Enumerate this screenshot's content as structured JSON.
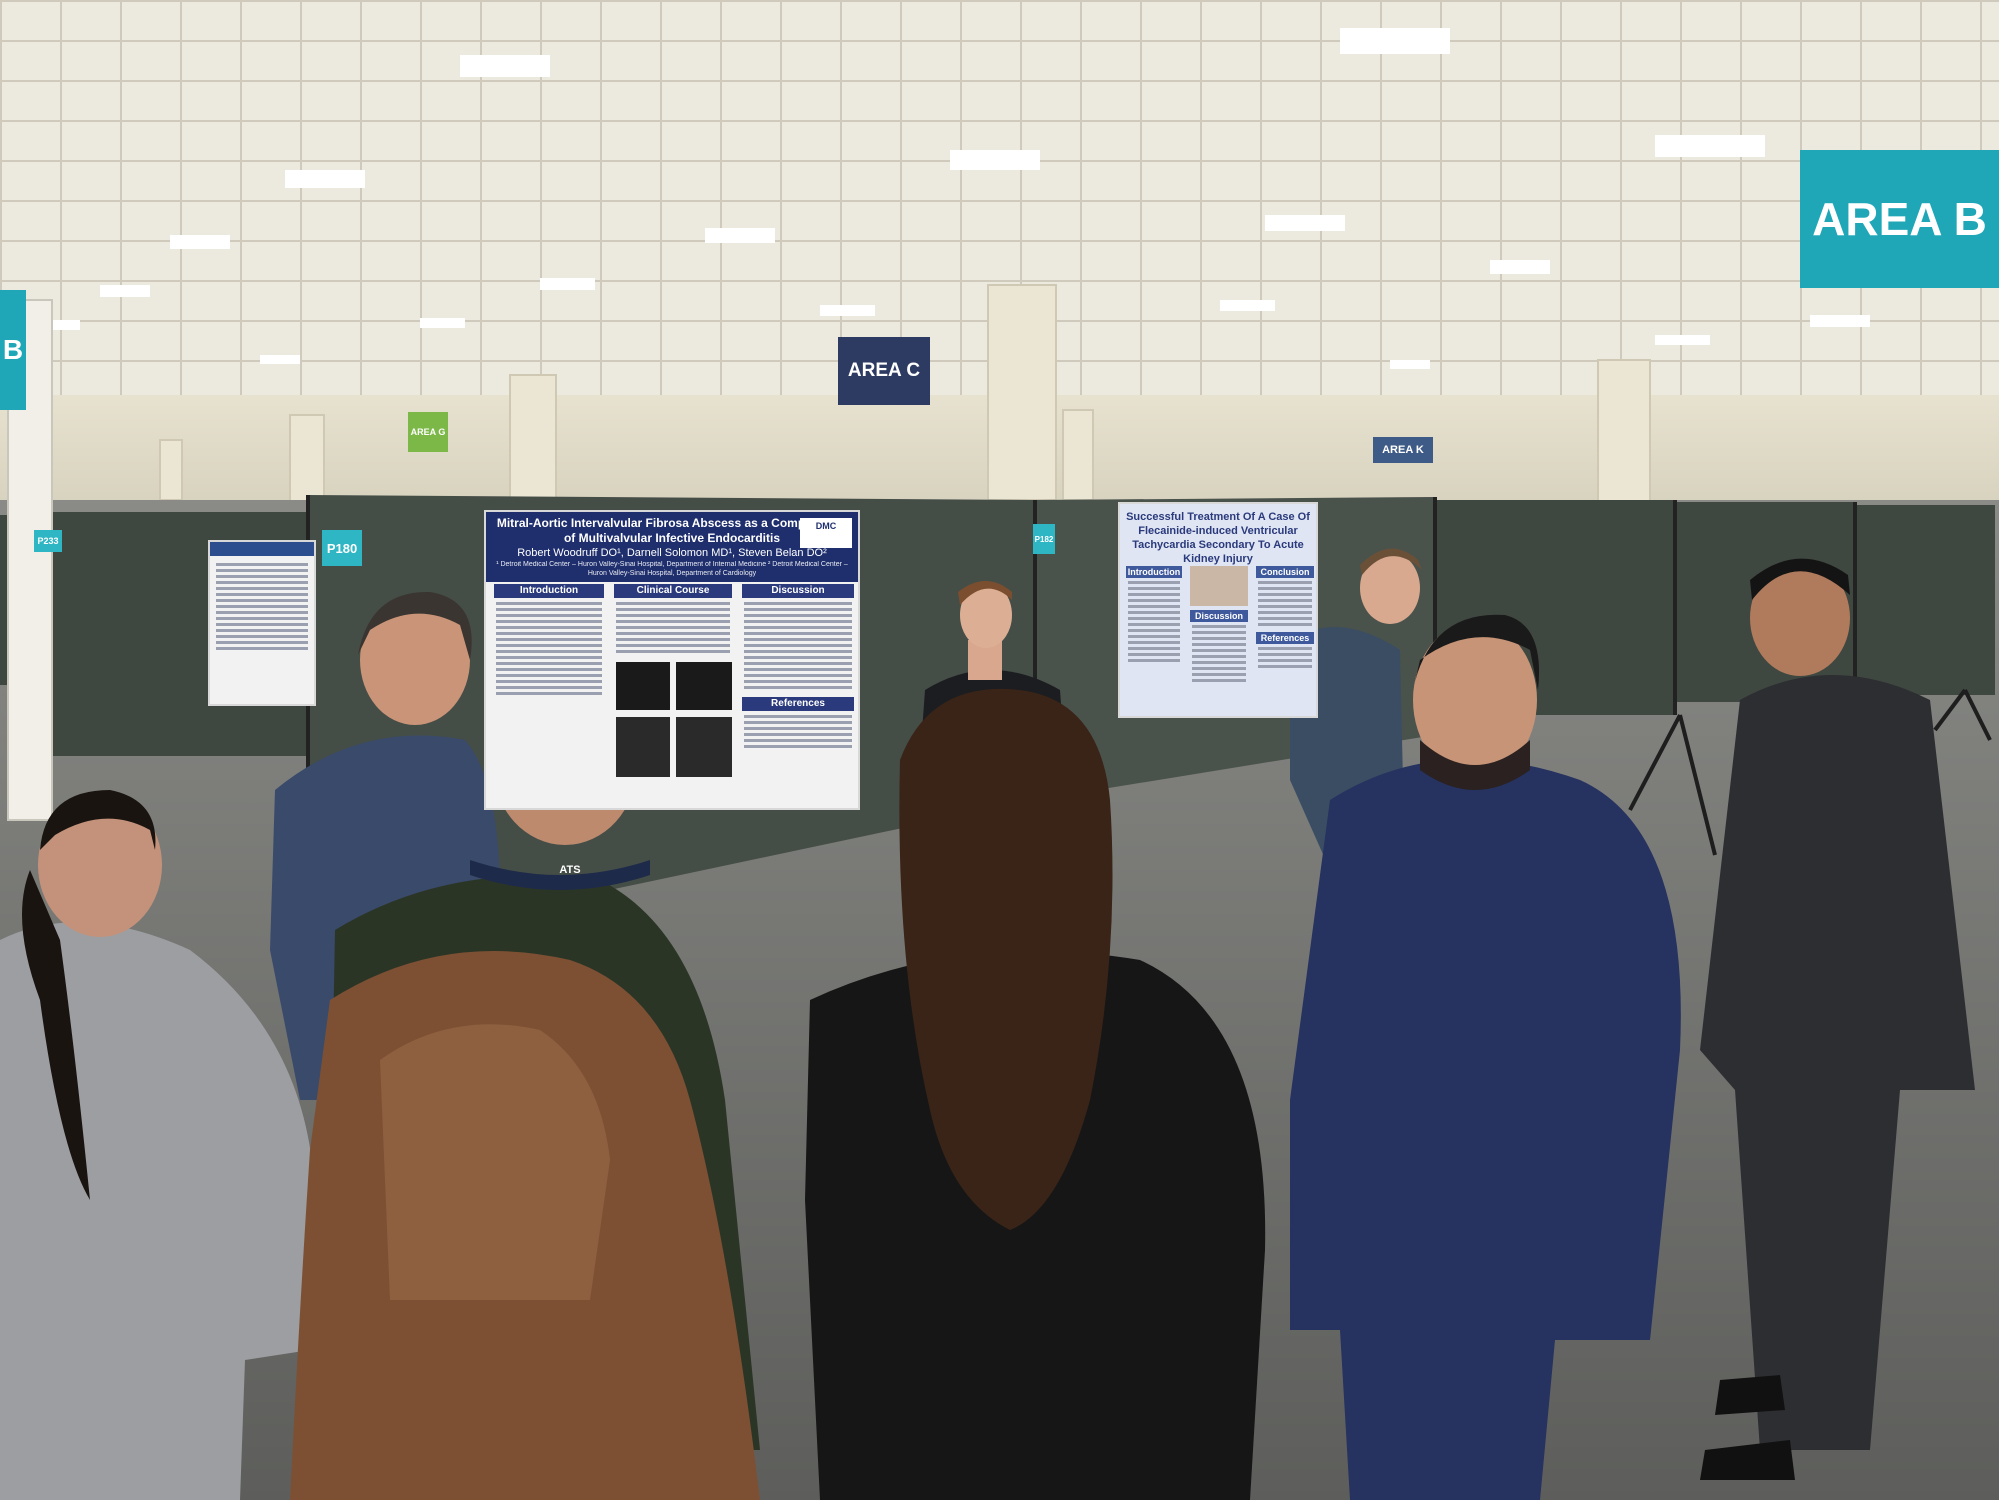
{
  "scene": {
    "signs": {
      "area_b_main": "AREA B",
      "area_c": "AREA C",
      "area_k": "AREA K",
      "area_g": "AREA G",
      "left_b": "B"
    },
    "panel_numbers": {
      "p180": "P180",
      "p182": "P182",
      "p233": "P233"
    },
    "poster_main": {
      "title": "Mitral-Aortic Intervalvular Fibrosa Abscess as a Complication of Multivalvular Infective Endocarditis",
      "authors": "Robert Woodruff DO¹, Darnell Solomon MD¹, Steven Belan DO²",
      "affiliations": "¹ Detroit Medical Center – Huron Valley-Sinai Hospital, Department of Internal Medicine  ² Detroit Medical Center – Huron Valley-Sinai Hospital, Department of Cardiology",
      "logo": "DMC",
      "sections": [
        "Introduction",
        "Clinical Course",
        "Discussion",
        "References"
      ]
    },
    "poster_right": {
      "title": "Successful Treatment Of A Case Of Flecainide-induced Ventricular Tachycardia Secondary To Acute Kidney Injury",
      "sections": [
        "Introduction",
        "Discussion",
        "Conclusion",
        "References"
      ]
    },
    "badge": "ATS",
    "colors": {
      "ceiling": "#e9e6dc",
      "panel": "#454d47",
      "floor": "#6b6c69",
      "sign_teal": "#1fa7b8",
      "sign_navy": "#2d3b62",
      "poster_navy": "#1f2f6e"
    }
  }
}
